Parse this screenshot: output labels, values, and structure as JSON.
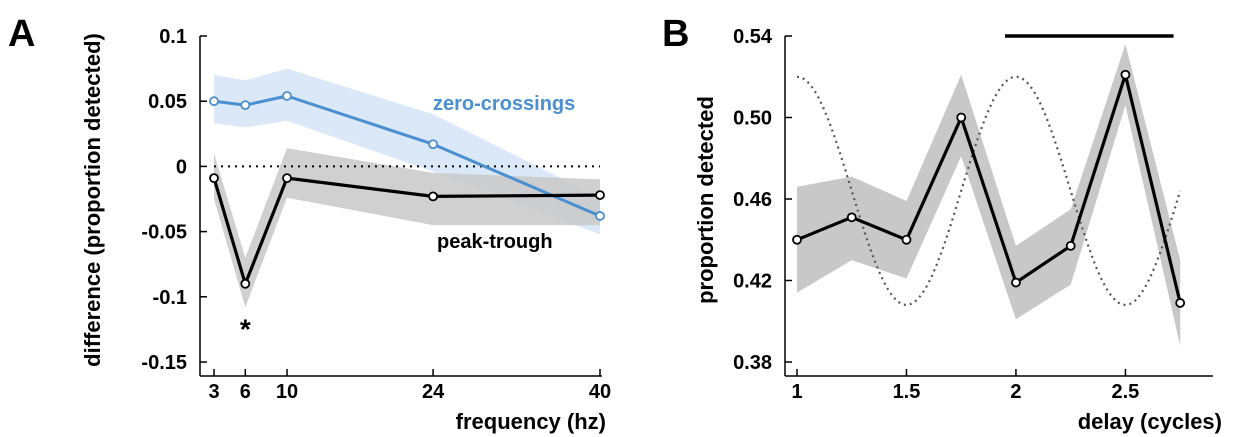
{
  "panels": {
    "a": {
      "letter": "A"
    },
    "b": {
      "letter": "B"
    }
  },
  "colors": {
    "blue": "#4a8fd0",
    "blue_band": "#dbe8f7",
    "gray_band": "#c8c8c8",
    "black": "#000000",
    "dotted": "#555555"
  },
  "chart_data": [
    {
      "type": "line",
      "panel": "A",
      "xlabel": "frequency (hz)",
      "ylabel": "difference (proportion detected)",
      "xlim": [
        0,
        40
      ],
      "ylim": [
        -0.15,
        0.1
      ],
      "x_ticks": [
        3,
        6,
        10,
        24,
        40
      ],
      "y_ticks": [
        {
          "value": 0.1,
          "label": "0.1"
        },
        {
          "value": 0.05,
          "label": "0.05"
        },
        {
          "value": 0,
          "label": "0"
        },
        {
          "value": -0.05,
          "label": "-0.05"
        },
        {
          "value": -0.1,
          "label": "-0.1"
        },
        {
          "value": -0.15,
          "label": "-0.15"
        }
      ],
      "reference_line": 0,
      "series": [
        {
          "name": "zero-crossings",
          "color": "#4a8fd0",
          "x": [
            3,
            6,
            10,
            24,
            40
          ],
          "values": [
            0.05,
            0.047,
            0.054,
            0.017,
            -0.038
          ],
          "lower": [
            0.033,
            0.03,
            0.035,
            -0.004,
            -0.052
          ],
          "upper": [
            0.07,
            0.066,
            0.075,
            0.04,
            -0.024
          ]
        },
        {
          "name": "peak-trough",
          "color": "#000000",
          "x": [
            3,
            6,
            10,
            24,
            40
          ],
          "values": [
            -0.009,
            -0.09,
            -0.009,
            -0.023,
            -0.022
          ],
          "lower": [
            -0.025,
            -0.108,
            -0.024,
            -0.045,
            -0.045
          ],
          "upper": [
            0.01,
            -0.07,
            0.014,
            -0.005,
            -0.01
          ]
        }
      ],
      "annotations": [
        {
          "text": "*",
          "x": 6,
          "y": -0.118
        }
      ]
    },
    {
      "type": "line",
      "panel": "B",
      "xlabel": "delay (cycles)",
      "ylabel": "proportion detected",
      "xlim": [
        1,
        2.9
      ],
      "ylim": [
        0.38,
        0.54
      ],
      "x_ticks": [
        {
          "value": 1,
          "label": "1"
        },
        {
          "value": 1.5,
          "label": "1.5"
        },
        {
          "value": 2,
          "label": "2"
        },
        {
          "value": 2.5,
          "label": "2.5"
        }
      ],
      "y_ticks": [
        {
          "value": 0.38,
          "label": "0.38"
        },
        {
          "value": 0.42,
          "label": "0.42"
        },
        {
          "value": 0.46,
          "label": "0.46"
        },
        {
          "value": 0.5,
          "label": "0.50"
        },
        {
          "value": 0.54,
          "label": "0.54"
        }
      ],
      "series": [
        {
          "color": "#000000",
          "x": [
            1,
            1.25,
            1.5,
            1.75,
            2,
            2.25,
            2.5,
            2.75
          ],
          "values": [
            0.44,
            0.451,
            0.44,
            0.5,
            0.419,
            0.437,
            0.521,
            0.409
          ],
          "lower": [
            0.414,
            0.43,
            0.421,
            0.481,
            0.401,
            0.418,
            0.506,
            0.388
          ],
          "upper": [
            0.466,
            0.471,
            0.459,
            0.521,
            0.437,
            0.455,
            0.536,
            0.43
          ]
        }
      ],
      "reference_wave": {
        "style": "dotted",
        "period": 1,
        "peak_at": 1,
        "center": 0.464,
        "amplitude": 0.056,
        "x_range": [
          1,
          2.75
        ]
      },
      "significance_bar": {
        "x_start": 1.95,
        "x_end": 2.72,
        "y": 0.54
      }
    }
  ]
}
